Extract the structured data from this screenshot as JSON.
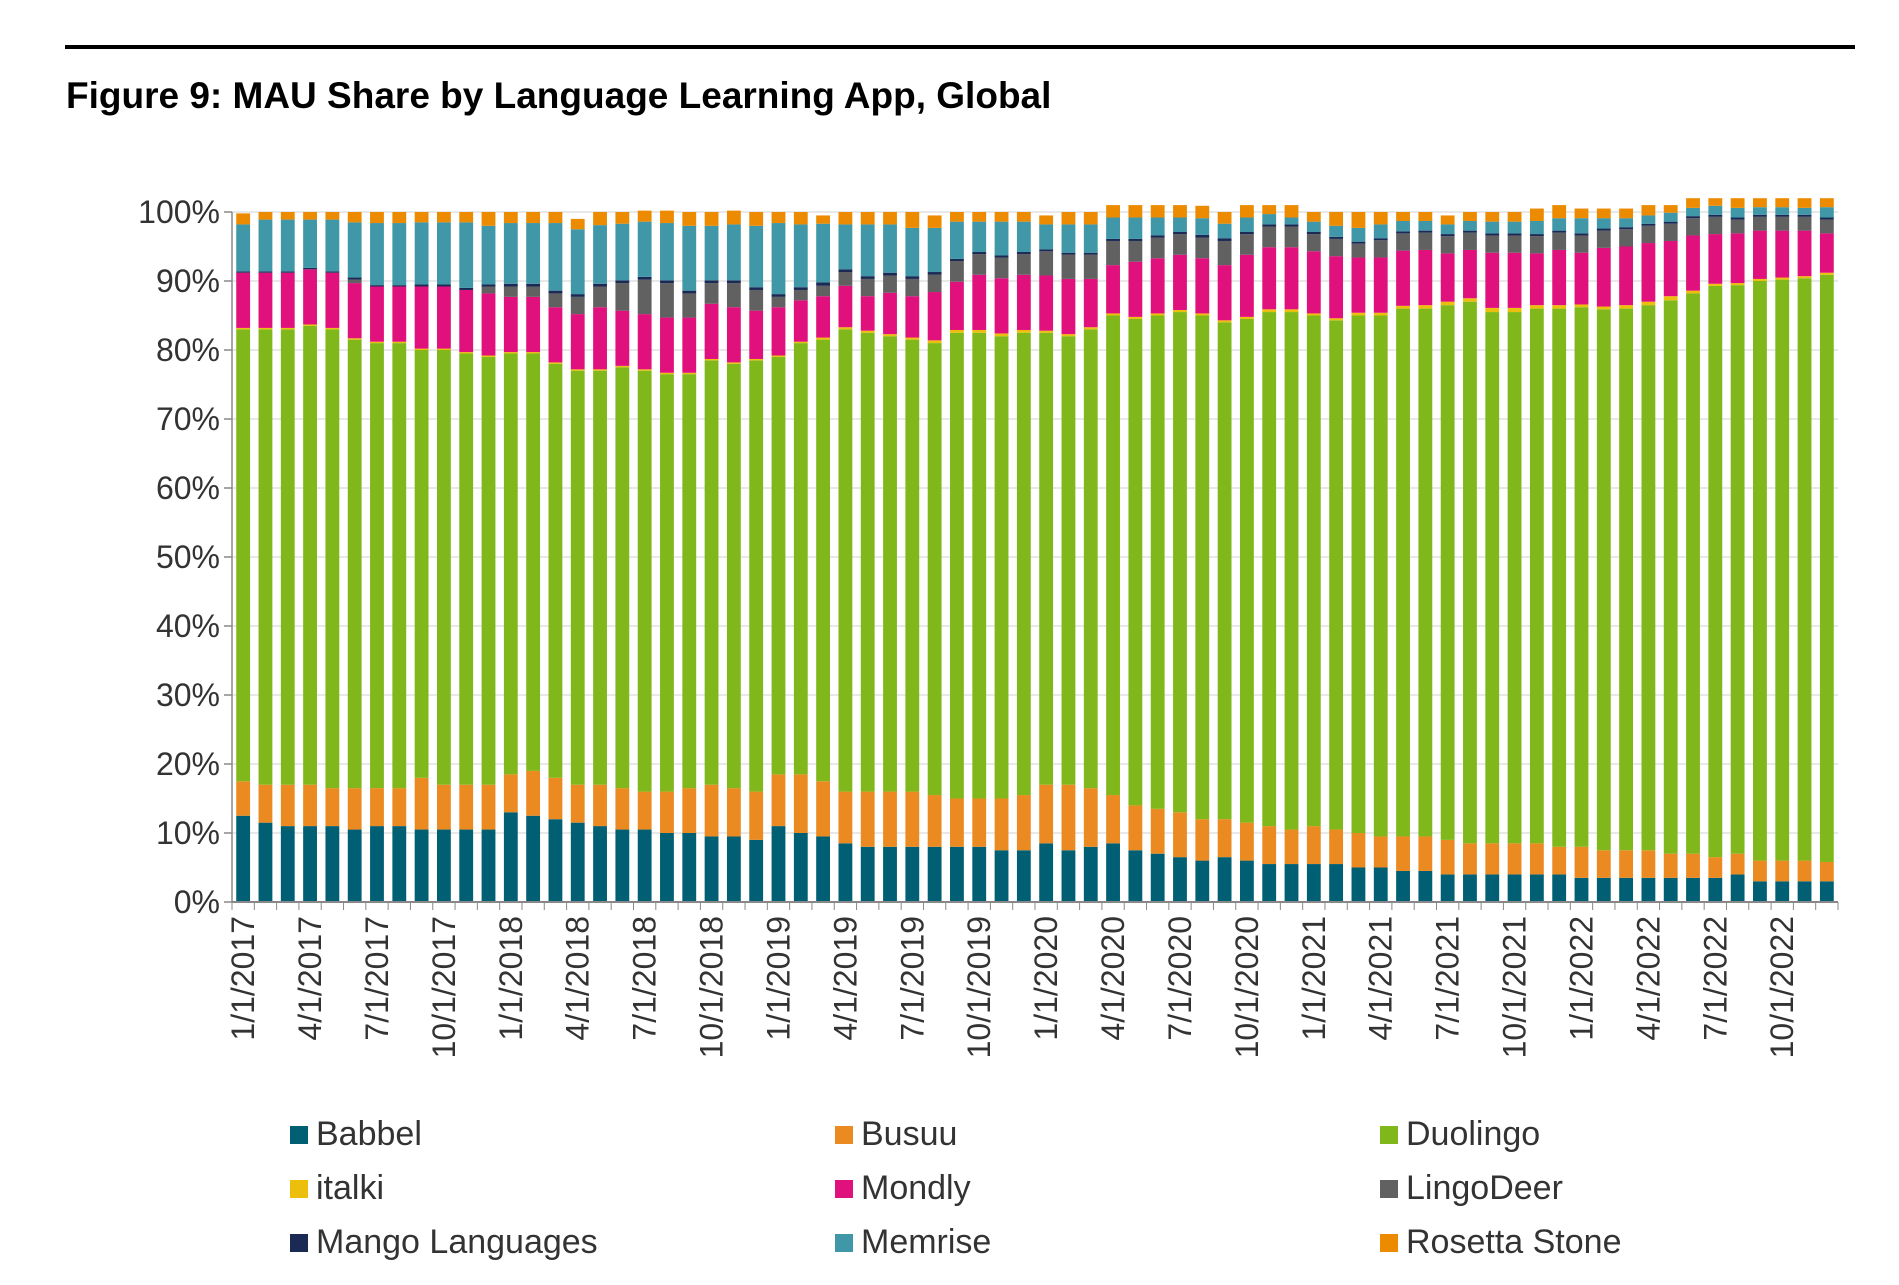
{
  "figure": {
    "title": "Figure 9: MAU Share by Language Learning App, Global"
  },
  "chart_data": {
    "type": "bar",
    "stacked": true,
    "title": "Figure 9: MAU Share by Language Learning App, Global",
    "xlabel": "",
    "ylabel": "",
    "ylim": [
      0,
      100
    ],
    "y_unit": "%",
    "y_ticks": [
      "0%",
      "10%",
      "20%",
      "30%",
      "40%",
      "50%",
      "60%",
      "70%",
      "80%",
      "90%",
      "100%"
    ],
    "x_tick_labels": [
      "1/1/2017",
      "4/1/2017",
      "7/1/2017",
      "10/1/2017",
      "1/1/2018",
      "4/1/2018",
      "7/1/2018",
      "10/1/2018",
      "1/1/2019",
      "4/1/2019",
      "7/1/2019",
      "10/1/2019",
      "1/1/2020",
      "4/1/2020",
      "7/1/2020",
      "10/1/2020",
      "1/1/2021",
      "4/1/2021",
      "7/1/2021",
      "10/1/2021",
      "1/1/2022",
      "4/1/2022",
      "7/1/2022",
      "10/1/2022"
    ],
    "grid": true,
    "legend_position": "bottom",
    "categories": [
      "2017-01",
      "2017-02",
      "2017-03",
      "2017-04",
      "2017-05",
      "2017-06",
      "2017-07",
      "2017-08",
      "2017-09",
      "2017-10",
      "2017-11",
      "2017-12",
      "2018-01",
      "2018-02",
      "2018-03",
      "2018-04",
      "2018-05",
      "2018-06",
      "2018-07",
      "2018-08",
      "2018-09",
      "2018-10",
      "2018-11",
      "2018-12",
      "2019-01",
      "2019-02",
      "2019-03",
      "2019-04",
      "2019-05",
      "2019-06",
      "2019-07",
      "2019-08",
      "2019-09",
      "2019-10",
      "2019-11",
      "2019-12",
      "2020-01",
      "2020-02",
      "2020-03",
      "2020-04",
      "2020-05",
      "2020-06",
      "2020-07",
      "2020-08",
      "2020-09",
      "2020-10",
      "2020-11",
      "2020-12",
      "2021-01",
      "2021-02",
      "2021-03",
      "2021-04",
      "2021-05",
      "2021-06",
      "2021-07",
      "2021-08",
      "2021-09",
      "2021-10",
      "2021-11",
      "2021-12",
      "2022-01",
      "2022-02",
      "2022-03",
      "2022-04",
      "2022-05",
      "2022-06",
      "2022-07",
      "2022-08",
      "2022-09",
      "2022-10",
      "2022-11",
      "2022-12"
    ],
    "series": [
      {
        "name": "Babbel",
        "color": "#005f73",
        "values": [
          12.5,
          11.5,
          11,
          11,
          11,
          10.5,
          11,
          11,
          10.5,
          10.5,
          10.5,
          10.5,
          13,
          12.5,
          12,
          11.5,
          11,
          10.5,
          10.5,
          10,
          10,
          9.5,
          9.5,
          9,
          11,
          10,
          9.5,
          8.5,
          8,
          8,
          8,
          8,
          8,
          8,
          7.5,
          7.5,
          8.5,
          7.5,
          8,
          8.5,
          7.5,
          7,
          6.5,
          6,
          6.5,
          6,
          5.5,
          5.5,
          5.5,
          5.5,
          5,
          5,
          4.5,
          4.5,
          4,
          4,
          4,
          4,
          4,
          4,
          3.5,
          3.5,
          3.5,
          3.5,
          3.5,
          3.5,
          3.5,
          4,
          3,
          3,
          3,
          3
        ]
      },
      {
        "name": "Busuu",
        "color": "#ea8a21",
        "values": [
          5,
          5.5,
          6,
          6,
          5.5,
          6,
          5.5,
          5.5,
          7.5,
          6.5,
          6.5,
          6.5,
          5.5,
          6.5,
          6,
          5.5,
          6,
          6,
          5.5,
          6,
          6.5,
          7.5,
          7,
          7,
          7.5,
          8.5,
          8,
          7.5,
          8,
          8,
          8,
          7.5,
          7,
          7,
          7.5,
          8,
          8.5,
          9.5,
          8.5,
          7,
          6.5,
          6.5,
          6.5,
          6,
          5.5,
          5.5,
          5.5,
          5,
          5.5,
          5,
          5,
          4.5,
          5,
          5,
          5,
          4.5,
          4.5,
          4.5,
          4.5,
          4,
          4.5,
          4,
          4,
          4,
          3.5,
          3.5,
          3,
          3,
          3,
          3,
          3,
          2.8
        ]
      },
      {
        "name": "Duolingo",
        "color": "#80b81c",
        "values": [
          65.5,
          66,
          66,
          66.5,
          66.5,
          65,
          64.5,
          64.5,
          62,
          63,
          62.5,
          62,
          61,
          60.5,
          60,
          60,
          60,
          61,
          61,
          60.5,
          60,
          61.5,
          61.5,
          62.5,
          60.5,
          62.5,
          64,
          67,
          66.5,
          66,
          65.5,
          65.5,
          67.5,
          67.5,
          67,
          67,
          65.5,
          65,
          66.5,
          69.5,
          70.5,
          71.5,
          72.5,
          73,
          72,
          73,
          74.5,
          75,
          74,
          73.8,
          75,
          75.5,
          76.5,
          76.5,
          77.5,
          78.5,
          77,
          77,
          77.5,
          78,
          78.2,
          78.4,
          78.5,
          79,
          80.2,
          81.2,
          82.8,
          82.4,
          84,
          84.2,
          84.4,
          85.1
        ]
      },
      {
        "name": "italki",
        "color": "#ecbf0d",
        "values": [
          0.2,
          0.2,
          0.2,
          0.2,
          0.2,
          0.2,
          0.2,
          0.2,
          0.2,
          0.2,
          0.2,
          0.2,
          0.2,
          0.2,
          0.2,
          0.2,
          0.2,
          0.2,
          0.2,
          0.2,
          0.2,
          0.2,
          0.2,
          0.2,
          0.2,
          0.2,
          0.3,
          0.3,
          0.3,
          0.3,
          0.3,
          0.4,
          0.4,
          0.4,
          0.4,
          0.4,
          0.3,
          0.3,
          0.3,
          0.3,
          0.3,
          0.3,
          0.3,
          0.3,
          0.3,
          0.3,
          0.4,
          0.4,
          0.3,
          0.3,
          0.4,
          0.4,
          0.4,
          0.5,
          0.5,
          0.5,
          0.6,
          0.6,
          0.5,
          0.5,
          0.4,
          0.4,
          0.5,
          0.5,
          0.6,
          0.4,
          0.3,
          0.3,
          0.3,
          0.3,
          0.3,
          0.3
        ]
      },
      {
        "name": "Mondly",
        "color": "#e0107c",
        "values": [
          8,
          8,
          8,
          8,
          8,
          8,
          8,
          8,
          9,
          9,
          9,
          9,
          8,
          8,
          8,
          8,
          9,
          8,
          8,
          8,
          8,
          8,
          8,
          7,
          7,
          6,
          6,
          6,
          5,
          6,
          6,
          7,
          7,
          8,
          8,
          8,
          8,
          8,
          7,
          7,
          8,
          8,
          8,
          8,
          8,
          9,
          9,
          9,
          9,
          9,
          8,
          8,
          8,
          8,
          7,
          7,
          8,
          8,
          7.5,
          8,
          7.5,
          8.5,
          8.5,
          8.5,
          8,
          8,
          7.2,
          7.2,
          7,
          6.8,
          6.6,
          5.7
        ]
      },
      {
        "name": "LingoDeer",
        "color": "#616161",
        "values": [
          0,
          0,
          0,
          0,
          0,
          0.5,
          0,
          0,
          0,
          0,
          0,
          1,
          1.5,
          1.5,
          2,
          2.5,
          3,
          4,
          5,
          5,
          3.5,
          3,
          3.5,
          3,
          1.5,
          1.5,
          1.5,
          2,
          2.5,
          2.5,
          2.5,
          2.5,
          3,
          3,
          3,
          3,
          3.5,
          3.5,
          3.5,
          3.5,
          3,
          3,
          3,
          3,
          3.5,
          3,
          3,
          3,
          2.5,
          2.5,
          2,
          2.5,
          2.5,
          2.5,
          2.5,
          2.5,
          2.5,
          2.5,
          2.5,
          2.5,
          2.5,
          2.5,
          2.5,
          2.5,
          2.5,
          2.5,
          2.5,
          2,
          2,
          2,
          2,
          2
        ]
      },
      {
        "name": "Mango Languages",
        "color": "#1b2a55",
        "values": [
          0.2,
          0.2,
          0.2,
          0.2,
          0.2,
          0.3,
          0.2,
          0.2,
          0.3,
          0.3,
          0.3,
          0.3,
          0.4,
          0.4,
          0.4,
          0.4,
          0.4,
          0.4,
          0.4,
          0.4,
          0.4,
          0.4,
          0.4,
          0.4,
          0.4,
          0.4,
          0.5,
          0.4,
          0.4,
          0.4,
          0.4,
          0.4,
          0.3,
          0.3,
          0.3,
          0.3,
          0.3,
          0.3,
          0.3,
          0.3,
          0.3,
          0.3,
          0.3,
          0.4,
          0.4,
          0.3,
          0.3,
          0.3,
          0.3,
          0.3,
          0.3,
          0.3,
          0.3,
          0.3,
          0.3,
          0.3,
          0.3,
          0.3,
          0.3,
          0.3,
          0.3,
          0.3,
          0.3,
          0.3,
          0.3,
          0.3,
          0.3,
          0.3,
          0.3,
          0.3,
          0.3,
          0.3
        ]
      },
      {
        "name": "Memrise",
        "color": "#3f97a8",
        "values": [
          6.8,
          7.5,
          7.5,
          7,
          7.5,
          8,
          9,
          9,
          9,
          9,
          9.5,
          8.5,
          8.8,
          8.8,
          9.8,
          9.4,
          8.5,
          8.2,
          8,
          8.3,
          9.4,
          7.9,
          8.1,
          8.9,
          10.3,
          9.1,
          8.5,
          6.5,
          7.5,
          7,
          7,
          6.4,
          5.4,
          4.4,
          4.9,
          4.4,
          3.6,
          4.1,
          4.1,
          3.1,
          3.1,
          2.6,
          2.1,
          2.4,
          2.1,
          2.1,
          1.5,
          1,
          1.5,
          1.6,
          2,
          2,
          1.5,
          1.4,
          1.4,
          1.4,
          1.7,
          1.7,
          1.9,
          1.8,
          2.2,
          1.5,
          1.3,
          1.2,
          1.3,
          1.2,
          1.3,
          1.4,
          1.1,
          1.1,
          1,
          1.5
        ]
      },
      {
        "name": "Rosetta Stone",
        "color": "#ec8a00",
        "values": [
          1.6,
          1.1,
          1.1,
          1.1,
          1.1,
          1.5,
          1.6,
          1.6,
          1.5,
          1.5,
          1.5,
          2,
          1.6,
          1.6,
          1.6,
          1.5,
          1.9,
          1.7,
          1.6,
          1.8,
          2,
          2,
          2,
          2,
          1.6,
          1.8,
          1.2,
          1.8,
          1.8,
          1.8,
          2.3,
          1.8,
          1.4,
          1.4,
          1.4,
          1.4,
          1.3,
          1.8,
          1.8,
          1.8,
          1.8,
          1.8,
          1.8,
          1.8,
          1.7,
          1.8,
          1.3,
          1.8,
          1.4,
          2,
          2.3,
          1.8,
          1.3,
          1.3,
          1.3,
          1.3,
          1.4,
          1.4,
          1.8,
          1.9,
          1.4,
          1.4,
          1.4,
          1.5,
          1.1,
          1.4,
          1.1,
          1.4,
          1.3,
          1.3,
          1.4,
          1.3
        ]
      }
    ]
  }
}
